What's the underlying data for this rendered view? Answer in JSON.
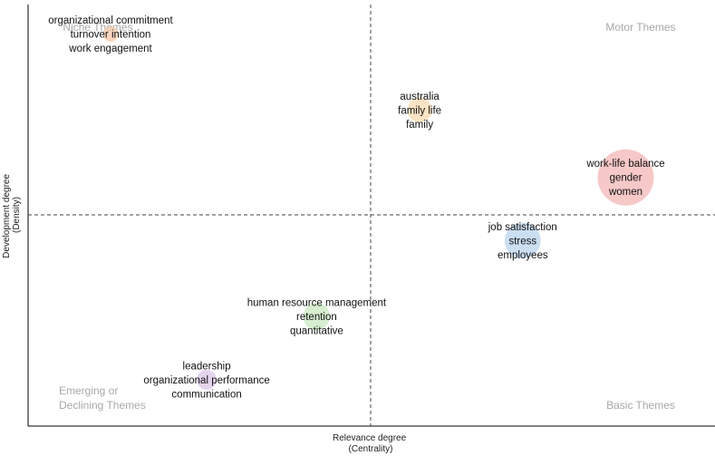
{
  "chart_data": {
    "type": "scatter",
    "title": "",
    "xlabel": [
      "Relevance degree",
      "(Centrality)"
    ],
    "ylabel": [
      "Development degree",
      "(Density)"
    ],
    "quadrants": {
      "top_left": [
        "Niche Themes"
      ],
      "top_right": [
        "Motor Themes"
      ],
      "bottom_left": [
        "Emerging or",
        "Declining Themes"
      ],
      "bottom_right": [
        "Basic Themes"
      ]
    },
    "grid": false,
    "clusters": [
      {
        "labels": [
          "organizational commitment",
          "turnover intention",
          "work engagement"
        ],
        "x": 0.12,
        "y": 0.93,
        "size": 0.1,
        "color": "#f5c9a8"
      },
      {
        "labels": [
          "australia",
          "family life",
          "family"
        ],
        "x": 0.57,
        "y": 0.75,
        "size": 0.3,
        "color": "#f7d9b0"
      },
      {
        "labels": [
          "work-life balance",
          "gender",
          "women"
        ],
        "x": 0.87,
        "y": 0.59,
        "size": 1.0,
        "color": "#f4b6b6"
      },
      {
        "labels": [
          "job satisfaction",
          "stress",
          "employees"
        ],
        "x": 0.72,
        "y": 0.44,
        "size": 0.55,
        "color": "#b9d3ee"
      },
      {
        "labels": [
          "human resource management",
          "retention",
          "quantitative"
        ],
        "x": 0.42,
        "y": 0.26,
        "size": 0.35,
        "color": "#c9e8c0"
      },
      {
        "labels": [
          "leadership",
          "organizational performance",
          "communication"
        ],
        "x": 0.26,
        "y": 0.11,
        "size": 0.2,
        "color": "#dcc6e8"
      }
    ]
  }
}
